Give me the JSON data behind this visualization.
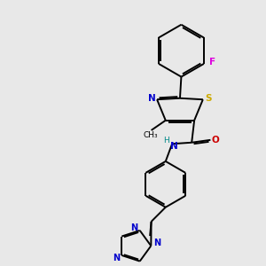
{
  "bg_color": "#e8e8e8",
  "bond_color": "#000000",
  "N_color": "#0000cc",
  "S_color": "#ccaa00",
  "O_color": "#cc0000",
  "F_color": "#dd00dd",
  "H_color": "#008888",
  "lw": 1.4,
  "figsize": [
    3.0,
    3.0
  ],
  "dpi": 100,
  "xlim": [
    0,
    10
  ],
  "ylim": [
    0,
    10
  ]
}
